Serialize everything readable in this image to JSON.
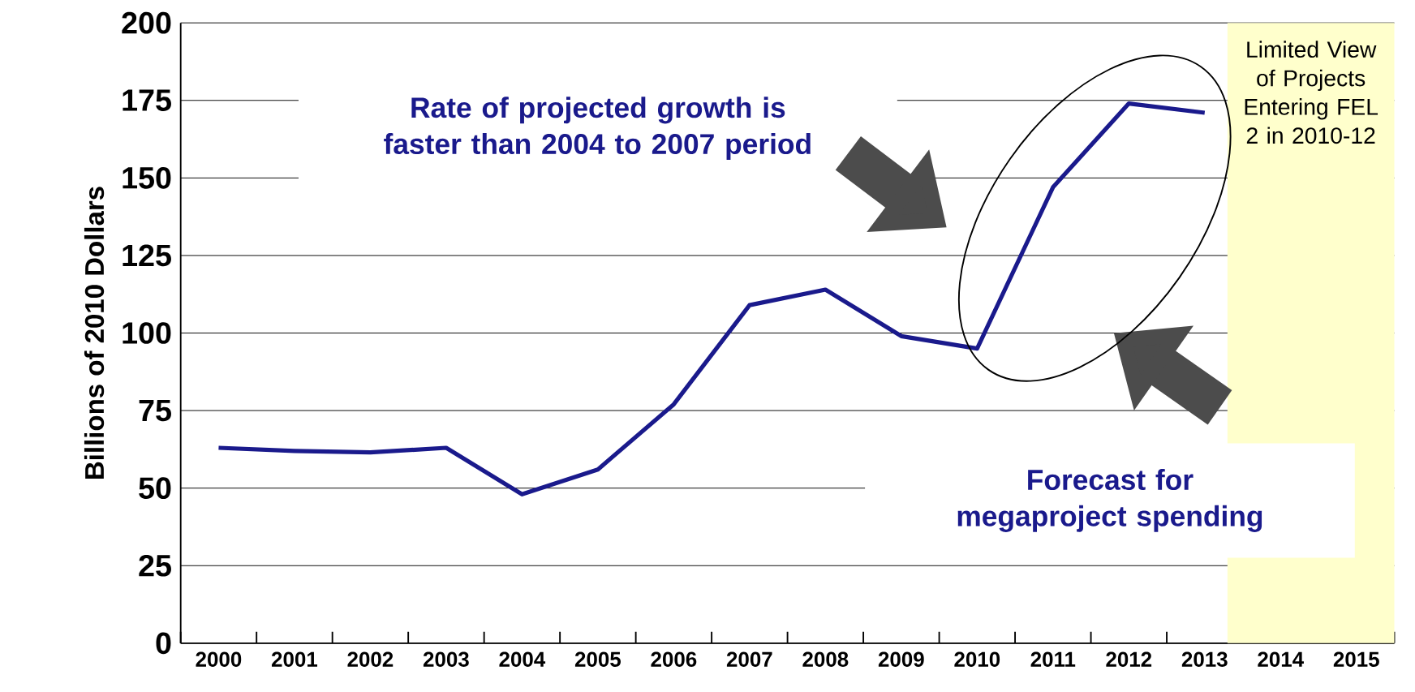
{
  "chart_data": {
    "type": "line",
    "ylabel": "Billions of 2010 Dollars",
    "x": [
      2000,
      2001,
      2002,
      2003,
      2004,
      2005,
      2006,
      2007,
      2008,
      2009,
      2010,
      2011,
      2012,
      2013
    ],
    "series": [
      {
        "color": "#1a1a8c",
        "values": [
          63,
          62,
          61.5,
          63,
          48,
          56,
          77,
          109,
          114,
          99,
          95,
          147,
          174,
          171
        ]
      }
    ],
    "xlim": [
      1999.5,
      2015.5
    ],
    "xticks": [
      2000,
      2001,
      2002,
      2003,
      2004,
      2005,
      2006,
      2007,
      2008,
      2009,
      2010,
      2011,
      2012,
      2013,
      2014,
      2015
    ],
    "ylim": [
      0,
      200
    ],
    "yticks": [
      0,
      25,
      50,
      75,
      100,
      125,
      150,
      175,
      200
    ],
    "grid": "y",
    "marker": "none",
    "line_style": "solid",
    "bands": [
      {
        "axis": "x",
        "from": 2013.3,
        "to": 2015.5,
        "label": "Limited View of Projects Entering FEL 2 in 2010-12",
        "color": "#ffffcc"
      }
    ],
    "annotations": [
      "Rate of projected growth is faster than 2004 to 2007 period",
      "Forecast for megaproject spending"
    ]
  }
}
